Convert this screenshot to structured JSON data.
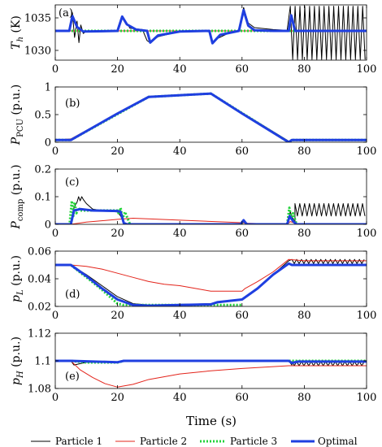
{
  "figure": {
    "xlabel": "Time (s)",
    "legend_placement": "bottom"
  },
  "legend": [
    {
      "label": "Particle 1",
      "color": "#000000",
      "style": "solid"
    },
    {
      "label": "Particle 2",
      "color": "#e3241b",
      "style": "solid"
    },
    {
      "label": "Particle 3",
      "color": "#22d33a",
      "style": "dotted"
    },
    {
      "label": "Optimal",
      "color": "#1f3fe0",
      "style": "solid-thick"
    }
  ],
  "chart_data": [
    {
      "type": "line",
      "panel": "(a)",
      "ylabel": "T_h (K)",
      "ylabel_main": "T",
      "ylabel_sub": "h",
      "ylabel_unit": "(K)",
      "xlim": [
        0,
        100
      ],
      "ylim": [
        1028.5,
        1037.0
      ],
      "yticks": [
        1030,
        1035
      ],
      "ytick_labels": [
        "1030",
        "1035"
      ],
      "xticks": [
        0,
        20,
        40,
        60,
        80,
        100
      ],
      "xtick_labels": [
        "0",
        "20",
        "40",
        "60",
        "80",
        "100"
      ],
      "grid": false,
      "series": [
        {
          "name": "Particle 1",
          "x": [
            0,
            4.5,
            5.5,
            6.2,
            7.0,
            7.6,
            8.2,
            9.0,
            10,
            20,
            21.5,
            22.5,
            24,
            28,
            29.5,
            30.5,
            33,
            40,
            49.5,
            50.5,
            52,
            55,
            59,
            60.5,
            62,
            64,
            70,
            74.5
          ],
          "y": [
            1033,
            1033,
            1035.8,
            1032.0,
            1034.5,
            1031.2,
            1033.9,
            1032.6,
            1033,
            1033,
            1035.2,
            1034.6,
            1033.4,
            1033.2,
            1031.5,
            1031.2,
            1032.1,
            1032.9,
            1033,
            1031.1,
            1031.8,
            1032.5,
            1033,
            1036.6,
            1034.2,
            1033.5,
            1033.2,
            1033.1
          ],
          "oscillation": {
            "x_start": 75.5,
            "x_end": 100,
            "period": 1.55,
            "low": 1028.6,
            "high": 1036.8
          }
        },
        {
          "name": "Particle 2",
          "x": [
            0,
            100
          ],
          "y": [
            1033,
            1033
          ]
        },
        {
          "name": "Particle 3",
          "x": [
            0,
            100
          ],
          "y": [
            1033,
            1033
          ]
        },
        {
          "name": "Optimal",
          "x": [
            0,
            4.5,
            5.5,
            7,
            9,
            20,
            21.5,
            23,
            26,
            29.5,
            30.5,
            33,
            40,
            49.5,
            50.5,
            53,
            59,
            60.5,
            62,
            64,
            70,
            75,
            75.8,
            77,
            100
          ],
          "y": [
            1033,
            1033,
            1035.3,
            1033.6,
            1032.9,
            1033,
            1035.2,
            1034,
            1033.2,
            1033,
            1031.2,
            1032.3,
            1032.9,
            1033,
            1031.1,
            1032.4,
            1033,
            1036.2,
            1033.8,
            1033.1,
            1033,
            1033,
            1035.4,
            1033,
            1033
          ]
        }
      ]
    },
    {
      "type": "line",
      "panel": "(b)",
      "ylabel": "P_PCU (p.u.)",
      "ylabel_main": "P",
      "ylabel_sub": "PCU",
      "ylabel_unit": "(p.u.)",
      "xlim": [
        0,
        100
      ],
      "ylim": [
        0,
        1.0
      ],
      "yticks": [
        0,
        0.5,
        1
      ],
      "ytick_labels": [
        "0",
        "0.5",
        "1"
      ],
      "xticks": [
        0,
        20,
        40,
        60,
        80,
        100
      ],
      "xtick_labels": [
        "0",
        "20",
        "40",
        "60",
        "80",
        "100"
      ],
      "grid": false,
      "series": [
        {
          "name": "Particle 1",
          "x": [
            0,
            5,
            30,
            50,
            75,
            76,
            100
          ],
          "y": [
            0.04,
            0.04,
            0.82,
            0.88,
            0.02,
            0.04,
            0.04
          ]
        },
        {
          "name": "Particle 2",
          "x": [
            0,
            5,
            30,
            50,
            75,
            76,
            100
          ],
          "y": [
            0.04,
            0.06,
            0.83,
            0.88,
            0.0,
            0.05,
            0.05
          ]
        },
        {
          "name": "Particle 3",
          "x": [
            0,
            5,
            30,
            50,
            75,
            76,
            100
          ],
          "y": [
            0.04,
            0.04,
            0.82,
            0.88,
            0.0,
            0.04,
            0.04
          ]
        },
        {
          "name": "Optimal",
          "x": [
            0,
            5,
            20,
            22,
            30,
            50,
            60,
            75,
            76,
            100
          ],
          "y": [
            0.04,
            0.04,
            0.52,
            0.58,
            0.82,
            0.88,
            0.52,
            0.0,
            0.04,
            0.04
          ]
        }
      ]
    },
    {
      "type": "line",
      "panel": "(c)",
      "ylabel": "P_comp (p.u.)",
      "ylabel_main": "P",
      "ylabel_sub": "comp",
      "ylabel_unit": "(p.u.)",
      "xlim": [
        0,
        100
      ],
      "ylim": [
        0,
        0.2
      ],
      "yticks": [
        0,
        0.1,
        0.2
      ],
      "ytick_labels": [
        "0",
        "0.1",
        "0.2"
      ],
      "xticks": [
        0,
        20,
        40,
        60,
        80,
        100
      ],
      "xtick_labels": [
        "0",
        "20",
        "40",
        "60",
        "80",
        "100"
      ],
      "grid": false,
      "series": [
        {
          "name": "Particle 1",
          "x": [
            0,
            5,
            6,
            7,
            7.5,
            8,
            8.5,
            9,
            10,
            12,
            16,
            20,
            21,
            22,
            24,
            59.5,
            60.5,
            61.5,
            62,
            74.5,
            75.5,
            76.2,
            77
          ],
          "y": [
            0,
            0,
            0.06,
            0.08,
            0.1,
            0.085,
            0.1,
            0.09,
            0.075,
            0.055,
            0.048,
            0.045,
            0.03,
            0.005,
            0,
            0,
            0.015,
            0.005,
            0,
            0,
            0.045,
            0.025,
            0.005
          ],
          "oscillation": {
            "x_start": 77,
            "x_end": 100,
            "period": 1.55,
            "low": 0.03,
            "high": 0.075
          }
        },
        {
          "name": "Particle 2",
          "x": [
            0,
            5,
            10,
            20,
            25,
            40,
            60,
            61,
            74.5,
            75.5,
            77,
            79,
            100
          ],
          "y": [
            0,
            0,
            0.008,
            0.018,
            0.022,
            0.015,
            0.006,
            0.004,
            0,
            0.01,
            0.004,
            0,
            0
          ]
        },
        {
          "name": "Particle 3",
          "x": [
            0,
            4.6,
            5.3,
            5.8,
            6.2,
            6.8,
            7.4,
            8,
            20,
            20.5,
            21,
            21.6,
            22.4,
            24,
            59.5,
            60.5,
            61.5,
            74.5,
            75.2,
            75.8,
            76.4,
            77.5,
            100
          ],
          "y": [
            0,
            0,
            0.085,
            0.03,
            0.08,
            0.04,
            0.06,
            0.05,
            0.05,
            0.035,
            0.06,
            0.02,
            0.045,
            0,
            0,
            0.012,
            0,
            0,
            0.06,
            0.02,
            0.04,
            0,
            0
          ]
        },
        {
          "name": "Optimal",
          "x": [
            0,
            5,
            6,
            8,
            12,
            20,
            21,
            22,
            23,
            59.5,
            60.5,
            61.5,
            74.5,
            75.3,
            76.5,
            77.5,
            100
          ],
          "y": [
            0,
            0,
            0.05,
            0.055,
            0.05,
            0.048,
            0.045,
            0.005,
            0,
            0,
            0.015,
            0,
            0,
            0.03,
            0.01,
            0,
            0
          ]
        }
      ]
    },
    {
      "type": "line",
      "panel": "(d)",
      "ylabel": "p_L (p.u.)",
      "ylabel_main": "p",
      "ylabel_sub": "L",
      "ylabel_unit": "(p.u.)",
      "xlim": [
        0,
        100
      ],
      "ylim": [
        0.02,
        0.06
      ],
      "yticks": [
        0.02,
        0.04,
        0.06
      ],
      "ytick_labels": [
        "0.02",
        "0.04",
        "0.06"
      ],
      "xticks": [
        0,
        20,
        40,
        60,
        80,
        100
      ],
      "xtick_labels": [
        "0",
        "20",
        "40",
        "60",
        "80",
        "100"
      ],
      "grid": false,
      "series": [
        {
          "name": "Particle 1",
          "x": [
            0,
            5,
            10,
            15,
            20,
            25,
            30,
            50,
            60,
            65,
            70,
            75,
            76
          ],
          "y": [
            0.05,
            0.05,
            0.043,
            0.035,
            0.027,
            0.022,
            0.021,
            0.022,
            0.025,
            0.033,
            0.043,
            0.053,
            0.054
          ],
          "oscillation": {
            "x_start": 76,
            "x_end": 100,
            "period": 1.55,
            "low": 0.051,
            "high": 0.054
          }
        },
        {
          "name": "Particle 2",
          "x": [
            0,
            5,
            10,
            15,
            20,
            25,
            30,
            35,
            40,
            45,
            50,
            55,
            60,
            61,
            65,
            70,
            75,
            80,
            100
          ],
          "y": [
            0.05,
            0.05,
            0.049,
            0.047,
            0.044,
            0.041,
            0.038,
            0.036,
            0.035,
            0.033,
            0.031,
            0.031,
            0.031,
            0.033,
            0.038,
            0.045,
            0.054,
            0.053,
            0.053
          ]
        },
        {
          "name": "Particle 3",
          "x": [
            0,
            5,
            10,
            15,
            20,
            22,
            60
          ],
          "y": [
            0.05,
            0.05,
            0.041,
            0.032,
            0.022,
            0.021,
            0.021
          ]
        },
        {
          "name": "Optimal",
          "x": [
            0,
            5,
            10,
            15,
            20,
            25,
            30,
            50,
            52,
            60,
            65,
            70,
            75,
            76,
            100
          ],
          "y": [
            0.05,
            0.05,
            0.042,
            0.033,
            0.025,
            0.021,
            0.0205,
            0.0215,
            0.023,
            0.025,
            0.033,
            0.043,
            0.051,
            0.05,
            0.05
          ]
        }
      ]
    },
    {
      "type": "line",
      "panel": "(e)",
      "ylabel": "p_H (p.u.)",
      "ylabel_main": "p",
      "ylabel_sub": "H",
      "ylabel_unit": "(p.u.)",
      "xlim": [
        0,
        100
      ],
      "ylim": [
        1.08,
        1.12
      ],
      "yticks": [
        1.08,
        1.1,
        1.12
      ],
      "ytick_labels": [
        "1.08",
        "1.1",
        "1.12"
      ],
      "xticks": [
        0,
        20,
        40,
        60,
        80,
        100
      ],
      "xtick_labels": [
        "0",
        "20",
        "40",
        "60",
        "80",
        "100"
      ],
      "grid": false,
      "series": [
        {
          "name": "Particle 1",
          "x": [
            0,
            5,
            6,
            10,
            20,
            22,
            30,
            75,
            76
          ],
          "y": [
            1.1,
            1.1,
            1.097,
            1.099,
            1.099,
            1.1,
            1.1,
            1.1,
            1.097
          ],
          "oscillation": {
            "x_start": 76,
            "x_end": 100,
            "period": 1.55,
            "low": 1.0965,
            "high": 1.0995
          }
        },
        {
          "name": "Particle 2",
          "x": [
            0,
            5,
            8,
            12,
            16,
            20,
            25,
            30,
            40,
            50,
            60,
            70,
            75,
            76,
            80,
            100
          ],
          "y": [
            1.1,
            1.1,
            1.0935,
            1.088,
            1.0835,
            1.081,
            1.083,
            1.0865,
            1.0905,
            1.0928,
            1.0945,
            1.0958,
            1.0965,
            1.0965,
            1.0965,
            1.0965
          ]
        },
        {
          "name": "Particle 3",
          "x": [
            0,
            5,
            10,
            20,
            22,
            30,
            100
          ],
          "y": [
            1.1,
            1.1,
            1.0988,
            1.0988,
            1.1,
            1.1,
            1.1
          ]
        },
        {
          "name": "Optimal",
          "x": [
            0,
            5,
            20,
            22,
            30,
            75,
            76,
            78,
            100
          ],
          "y": [
            1.1,
            1.1,
            1.099,
            1.1,
            1.1,
            1.1,
            1.0985,
            1.0995,
            1.0995
          ]
        }
      ]
    }
  ]
}
